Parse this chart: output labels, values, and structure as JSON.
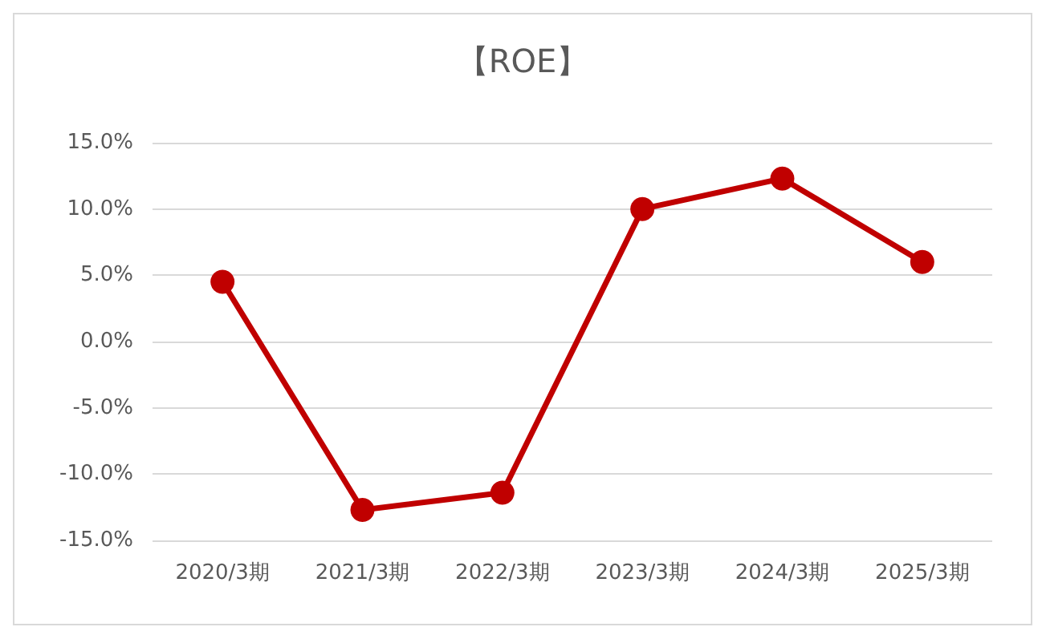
{
  "chart_data": {
    "type": "line",
    "title": "【ROE】",
    "categories": [
      "2020/3期",
      "2021/3期",
      "2022/3期",
      "2023/3期",
      "2024/3期",
      "2025/3期"
    ],
    "series": [
      {
        "color": "#c00000",
        "values": [
          4.5,
          -12.7,
          -11.4,
          10.0,
          12.3,
          6.0
        ]
      }
    ],
    "ylim": [
      -15,
      15
    ],
    "yticks": [
      {
        "value": -15,
        "label": "-15.0%"
      },
      {
        "value": -10,
        "label": "-10.0%"
      },
      {
        "value": -5,
        "label": "-5.0%"
      },
      {
        "value": 0,
        "label": "0.0%"
      },
      {
        "value": 5,
        "label": "5.0%"
      },
      {
        "value": 10,
        "label": "10.0%"
      },
      {
        "value": 15,
        "label": "15.0%"
      }
    ],
    "grid": "y",
    "marker": "circle",
    "line_style": "solid"
  }
}
